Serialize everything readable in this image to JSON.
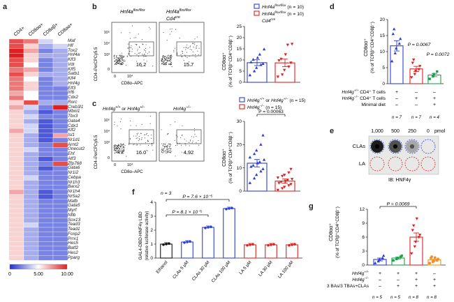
{
  "panels": {
    "a": "a",
    "b": "b",
    "c": "c",
    "d": "d",
    "e": "e",
    "f": "f",
    "g": "g"
  },
  "colors": {
    "blue": "#2b3fd6",
    "red": "#e02020",
    "green": "#1ea04a",
    "orange": "#f0902a",
    "black": "#111111",
    "grey": "#bbbbbb"
  },
  "heatmap": {
    "columns": [
      "CD4+",
      "CD8αα+",
      "CD8αβ+",
      "CD8αα+"
    ],
    "genes": [
      "Maf",
      "Hlf",
      "Tox2",
      "Hnf4a",
      "Klf3",
      "Vdr",
      "Klf5",
      "Satb1",
      "Klf4",
      "Hnf4g",
      "Elf3",
      "Irf6",
      "Cdx2",
      "Rorc",
      "Creb3l1",
      "Mbnl1",
      "Tbx3",
      "Gata4",
      "Cdx1",
      "Klf2",
      "Isl1",
      "Nr1d1",
      "Arnt2",
      "Onecut2",
      "Ehf",
      "Atf3",
      "Zfp768",
      "Gata6",
      "Nr1i2",
      "Cebpa",
      "Nr1h3",
      "Barx2",
      "Nr1h4",
      "Nr5a2",
      "Mafb",
      "Gata5",
      "Myrf",
      "Nfib",
      "Sox13",
      "Tead3",
      "Tead1",
      "Foxp2",
      "Prrx1",
      "Hes5",
      "Batf2",
      "Hes2",
      "Pparg"
    ],
    "colorbar_ticks": [
      "0",
      "5.00",
      "10.00"
    ],
    "values": [
      [
        9,
        8,
        4,
        5
      ],
      [
        9,
        6,
        3,
        4
      ],
      [
        10,
        7,
        2,
        3
      ],
      [
        10,
        6,
        3,
        3
      ],
      [
        9,
        6,
        2,
        3
      ],
      [
        9,
        5,
        2,
        3
      ],
      [
        8,
        7,
        2,
        3
      ],
      [
        9,
        6,
        3,
        3
      ],
      [
        8,
        5,
        2,
        3
      ],
      [
        8,
        6,
        2,
        3
      ],
      [
        8,
        6,
        2,
        2
      ],
      [
        7,
        5,
        2,
        2
      ],
      [
        8,
        5,
        2,
        2
      ],
      [
        6,
        9,
        3,
        3
      ],
      [
        7,
        4,
        2,
        10
      ],
      [
        6,
        3,
        1,
        2
      ],
      [
        6,
        4,
        2,
        2
      ],
      [
        6,
        3,
        1,
        2
      ],
      [
        6,
        4,
        1,
        2
      ],
      [
        7,
        4,
        1,
        2
      ],
      [
        6,
        3,
        1,
        7
      ],
      [
        6,
        3,
        1,
        2
      ],
      [
        6,
        3,
        2,
        9
      ],
      [
        6,
        4,
        2,
        2
      ],
      [
        6,
        3,
        2,
        2
      ],
      [
        6,
        3,
        1,
        2
      ],
      [
        6,
        3,
        2,
        9
      ],
      [
        6,
        3,
        1,
        2
      ],
      [
        6,
        3,
        2,
        2
      ],
      [
        6,
        4,
        2,
        2
      ],
      [
        6,
        3,
        2,
        2
      ],
      [
        6,
        3,
        2,
        2
      ],
      [
        7,
        3,
        1,
        2
      ],
      [
        6,
        3,
        1,
        2
      ],
      [
        6,
        3,
        2,
        2
      ],
      [
        6,
        3,
        2,
        2
      ],
      [
        6,
        3,
        2,
        2
      ],
      [
        6,
        3,
        2,
        2
      ],
      [
        6,
        3,
        2,
        2
      ],
      [
        6,
        4,
        2,
        2
      ],
      [
        6,
        3,
        2,
        2
      ],
      [
        6,
        3,
        2,
        2
      ],
      [
        6,
        3,
        2,
        2
      ],
      [
        6,
        3,
        2,
        2
      ],
      [
        6,
        3,
        2,
        2
      ],
      [
        6,
        3,
        2,
        2
      ],
      [
        6,
        3,
        2,
        2
      ]
    ]
  },
  "flow_b": {
    "plot1": {
      "title": "Hnf4a",
      "title_sup": "flox/flox",
      "gate_value": "16.2"
    },
    "plot2": {
      "title": "Hnf4a",
      "title_sup": "flox/flox",
      "title2": "Cd4",
      "title2_sup": "cre",
      "gate_value": "15.7"
    },
    "ylabel": "CD4–PerCPCy5.5",
    "xlabel": "CD8α–APC",
    "yticks": [
      "10⁵",
      "10⁴",
      "10³",
      "0"
    ],
    "xticks": [
      "0",
      "10⁴"
    ]
  },
  "flow_c": {
    "plot1": {
      "title": "Hnf4g",
      "title_sup": "+/+",
      "mid": " or ",
      "title_b": "Hnf4g",
      "title_b_sup": "+/–",
      "gate_value": "16.0"
    },
    "plot2": {
      "title": "Hnf4g",
      "title_sup": "–/–",
      "gate_value": "4.92"
    },
    "ylabel": "CD4–PerCPCy5.5",
    "xlabel": "CD8α–APC",
    "yticks": [
      "10⁵",
      "10⁴",
      "10³",
      "0"
    ],
    "xticks": [
      "0",
      "10⁴"
    ]
  },
  "chart_data": [
    {
      "panel": "b",
      "type": "bar",
      "ylabel1": "CD8αα⁺",
      "ylabel2": "(% of TCRβ⁺CD4⁺CD8β⁻)",
      "legend": [
        {
          "label": "Hnf4a",
          "sup": "flox/flox",
          "n": "(n = 10)"
        },
        {
          "label": "Hnf4a",
          "sup": "flox/flox",
          "n": "(n = 10)",
          "line2": "Cd4",
          "line2_sup": "cre"
        }
      ],
      "yticks": [
        0,
        5,
        10,
        15,
        20,
        25
      ],
      "ylim": [
        0,
        25
      ],
      "series": [
        {
          "mean": 8.8,
          "sem": 1.3,
          "points": [
            3.2,
            5.0,
            6.5,
            7.8,
            8.3,
            9.0,
            10.2,
            11.0,
            12.5,
            14.8
          ]
        },
        {
          "mean": 8.7,
          "sem": 1.7,
          "points": [
            2.5,
            3.5,
            5.5,
            7.0,
            8.8,
            9.8,
            10.5,
            12.5,
            16.8,
            17.2
          ]
        }
      ]
    },
    {
      "panel": "c",
      "type": "bar",
      "ylabel1": "CD8αα⁺",
      "ylabel2": "(% of TCRβ⁺CD4⁺CD8β⁻)",
      "legend": [
        {
          "label": "Hnf4g",
          "sup": "+/+",
          "mid": " or ",
          "label_b": "Hnf4g",
          "sup_b": "+/–",
          "n": "(n = 15)"
        },
        {
          "label": "Hnf4g",
          "sup": "–/–",
          "n": "(n = 15)"
        }
      ],
      "pvalue": "P = 0.00063",
      "yticks": [
        0,
        10,
        20,
        30
      ],
      "ylim": [
        0,
        30
      ],
      "series": [
        {
          "mean": 12.0,
          "sem": 1.6,
          "points": [
            3.5,
            5.5,
            7.0,
            8.5,
            9.5,
            10.5,
            11.0,
            12.0,
            12.5,
            13.5,
            14.5,
            16.0,
            17.5,
            20.0,
            24.0
          ]
        },
        {
          "mean": 4.3,
          "sem": 0.9,
          "points": [
            0.5,
            1.2,
            1.8,
            2.5,
            3.0,
            3.5,
            4.0,
            4.3,
            4.8,
            5.2,
            5.8,
            6.5,
            7.0,
            8.0,
            9.5
          ]
        }
      ]
    },
    {
      "panel": "d",
      "type": "bar",
      "ylabel1": "CD8αα⁺",
      "ylabel2": "(% of TCRβ⁺CD4⁺CD8β⁻)",
      "yticks": [
        0,
        5,
        10,
        15,
        20
      ],
      "ylim": [
        0,
        20
      ],
      "pvalues": [
        "P = 0.0067",
        "P = 0.0072"
      ],
      "row_labels": [
        {
          "pre": "Hnf4g",
          "sup": "+/+",
          "post": " CD4⁺ T cells"
        },
        {
          "pre": "Hnf4g",
          "sup": "–/–",
          "post": " CD4⁺ T cells"
        },
        {
          "pre": "Minimal diet",
          "sup": "",
          "post": ""
        }
      ],
      "row_signs": [
        [
          "+",
          "–",
          "–"
        ],
        [
          "–",
          "+",
          "+"
        ],
        [
          "–",
          "–",
          "+"
        ]
      ],
      "n": [
        "n = 7",
        "n = 7",
        "n = 4"
      ],
      "series": [
        {
          "mean": 11.8,
          "sem": 1.6,
          "points": [
            7.0,
            9.5,
            11.0,
            12.5,
            14.0,
            15.5,
            17.0
          ]
        },
        {
          "mean": 4.6,
          "sem": 0.8,
          "points": [
            2.0,
            3.0,
            4.0,
            4.5,
            5.5,
            6.5,
            7.5
          ]
        },
        {
          "mean": 2.7,
          "sem": 0.5,
          "points": [
            1.5,
            2.3,
            3.0,
            3.8
          ]
        }
      ]
    },
    {
      "panel": "f",
      "type": "bar",
      "n_label": "n = 3",
      "ylabel1": "GAL4-DBD-HNF4γ LBD",
      "ylabel2": "(relative luciferase activity)",
      "yticks": [
        0,
        1,
        2,
        3,
        4
      ],
      "ylim": [
        0,
        4
      ],
      "categories": [
        "Ethanol",
        "CLAs 5 μM",
        "CLAs 30 μM",
        "CLAs 100 μM",
        "LA 5 μM",
        "LA 30 μM",
        "LA 100 μM"
      ],
      "values": [
        1.0,
        1.15,
        2.2,
        3.55,
        0.95,
        0.95,
        0.95
      ],
      "pvalues": [
        "P = 8.1 × 10⁻⁵",
        "P = 7.6 × 10⁻⁵"
      ]
    },
    {
      "panel": "g",
      "type": "bar",
      "ylabel1": "CD8αα⁺",
      "ylabel2": "(% of TCRβ⁺CD4⁺CD8β⁻)",
      "yticks": [
        0,
        3,
        6,
        9,
        12
      ],
      "ylim": [
        0,
        12
      ],
      "pvalue": "P = 0.0069",
      "row_labels": [
        {
          "pre": "Hnf4g",
          "sup": "+/+"
        },
        {
          "pre": "Hnf4g",
          "sup": "–/–"
        },
        {
          "pre": "3 BAs/3 TBAs+CLAs",
          "sup": ""
        }
      ],
      "row_signs": [
        [
          "+",
          "+",
          "+",
          "–"
        ],
        [
          "–",
          "–",
          "+",
          "+"
        ],
        [
          "–",
          "+",
          "+",
          "+"
        ]
      ],
      "n": [
        "n = 5",
        "n = 5",
        "n = 8",
        "n = 8"
      ],
      "series": [
        {
          "mean": 1.2,
          "sem": 0.3,
          "points": [
            0.4,
            0.8,
            1.2,
            1.5,
            2.0
          ]
        },
        {
          "mean": 1.5,
          "sem": 0.2,
          "points": [
            1.0,
            1.3,
            1.5,
            1.8,
            2.0
          ]
        },
        {
          "mean": 6.0,
          "sem": 0.9,
          "points": [
            2.5,
            4.0,
            5.0,
            6.0,
            6.5,
            7.5,
            8.5,
            10.0
          ]
        },
        {
          "mean": 1.1,
          "sem": 0.2,
          "points": [
            0.4,
            0.7,
            0.9,
            1.0,
            1.3,
            1.5,
            1.8,
            1.6
          ]
        }
      ]
    }
  ],
  "panel_e": {
    "top_labels": [
      "1,000",
      "500",
      "250",
      "0",
      "pmol"
    ],
    "row_labels": [
      "CLAs",
      "LA"
    ],
    "ib_label": "IB: HNF4γ",
    "spot_intensity": [
      0.95,
      0.7,
      0.3,
      0.05
    ]
  }
}
